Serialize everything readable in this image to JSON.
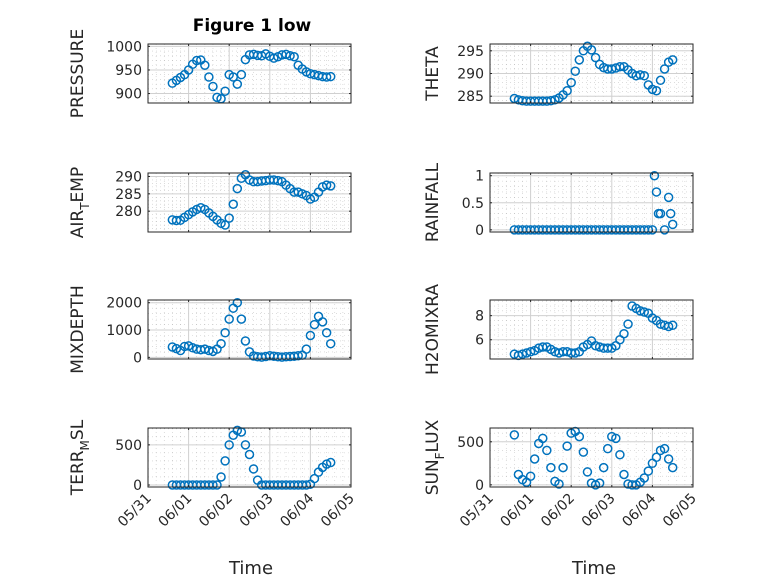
{
  "figure": {
    "title": "Figure 1 low"
  },
  "colors": {
    "marker": "#0072BD",
    "axis": "#262626"
  },
  "x_ticks": [
    "05/31",
    "06/01",
    "06/02",
    "06/03",
    "06/04",
    "06/05"
  ],
  "x_label": "Time",
  "chart_data": [
    {
      "type": "scatter",
      "id": "pressure",
      "ylabel": "PRESSURE",
      "ylim": [
        880,
        1005
      ],
      "yticks": [
        "900",
        "950",
        "1000"
      ],
      "ytick_values": [
        900,
        950,
        1000
      ],
      "x": [
        0.6,
        0.7,
        0.8,
        0.9,
        1.0,
        1.1,
        1.2,
        1.3,
        1.4,
        1.5,
        1.6,
        1.7,
        1.8,
        1.9,
        2.0,
        2.1,
        2.2,
        2.3,
        2.4,
        2.5,
        2.6,
        2.7,
        2.8,
        2.9,
        3.0,
        3.1,
        3.2,
        3.3,
        3.4,
        3.5,
        3.6,
        3.7,
        3.8,
        3.9,
        4.0,
        4.1,
        4.2,
        4.3,
        4.4,
        4.5
      ],
      "y": [
        922,
        928,
        934,
        940,
        950,
        962,
        970,
        971,
        960,
        935,
        915,
        892,
        889,
        905,
        940,
        935,
        920,
        940,
        972,
        982,
        983,
        981,
        980,
        984,
        979,
        975,
        978,
        982,
        983,
        980,
        978,
        960,
        952,
        946,
        942,
        940,
        938,
        936,
        935,
        936
      ]
    },
    {
      "type": "scatter",
      "id": "theta",
      "ylabel": "THETA",
      "ylim": [
        283.5,
        296.5
      ],
      "yticks": [
        "285",
        "290",
        "295"
      ],
      "ytick_values": [
        285,
        290,
        295
      ],
      "x": [
        0.6,
        0.7,
        0.8,
        0.9,
        1.0,
        1.1,
        1.2,
        1.3,
        1.4,
        1.5,
        1.6,
        1.7,
        1.8,
        1.9,
        2.0,
        2.1,
        2.2,
        2.3,
        2.4,
        2.5,
        2.6,
        2.7,
        2.8,
        2.9,
        3.0,
        3.1,
        3.2,
        3.3,
        3.4,
        3.5,
        3.6,
        3.7,
        3.8,
        3.9,
        4.0,
        4.1,
        4.2,
        4.3,
        4.4,
        4.5
      ],
      "y": [
        284.5,
        284.2,
        284.0,
        283.9,
        283.9,
        283.9,
        283.9,
        283.9,
        283.9,
        284.0,
        284.2,
        284.6,
        285.3,
        286.2,
        288.0,
        290.5,
        293.0,
        295.0,
        296.0,
        295.2,
        293.5,
        292.0,
        291.3,
        291.0,
        291.0,
        291.2,
        291.5,
        291.5,
        290.8,
        290.0,
        289.5,
        289.7,
        289.5,
        287.5,
        286.5,
        286.2,
        288.5,
        291.0,
        292.5,
        293.0
      ]
    },
    {
      "type": "scatter",
      "id": "air_temp",
      "ylabel": "AIR_TEMP",
      "ylim": [
        274,
        291
      ],
      "yticks": [
        "280",
        "285",
        "290"
      ],
      "ytick_values": [
        280,
        285,
        290
      ],
      "x": [
        0.6,
        0.7,
        0.8,
        0.9,
        1.0,
        1.1,
        1.2,
        1.3,
        1.4,
        1.5,
        1.6,
        1.7,
        1.8,
        1.9,
        2.0,
        2.1,
        2.2,
        2.3,
        2.4,
        2.5,
        2.6,
        2.7,
        2.8,
        2.9,
        3.0,
        3.1,
        3.2,
        3.3,
        3.4,
        3.5,
        3.6,
        3.7,
        3.8,
        3.9,
        4.0,
        4.1,
        4.2,
        4.3,
        4.4,
        4.5
      ],
      "y": [
        277.5,
        277.3,
        277.4,
        278.2,
        279.0,
        279.8,
        280.5,
        281.0,
        280.5,
        279.5,
        278.5,
        277.5,
        276.5,
        276.0,
        278.0,
        282.0,
        286.5,
        289.5,
        290.5,
        289.0,
        288.5,
        288.5,
        288.7,
        288.8,
        289.0,
        289.0,
        288.8,
        288.5,
        287.5,
        286.5,
        285.5,
        285.5,
        285.0,
        284.5,
        283.5,
        284.0,
        285.5,
        287.0,
        287.5,
        287.3
      ]
    },
    {
      "type": "scatter",
      "id": "rainfall",
      "ylabel": "RAINFALL",
      "ylim": [
        -0.04,
        1.05
      ],
      "yticks": [
        "0",
        "0.5",
        "1"
      ],
      "ytick_values": [
        0,
        0.5,
        1
      ],
      "x": [
        0.6,
        0.7,
        0.8,
        0.9,
        1.0,
        1.1,
        1.2,
        1.3,
        1.4,
        1.5,
        1.6,
        1.7,
        1.8,
        1.9,
        2.0,
        2.1,
        2.2,
        2.3,
        2.4,
        2.5,
        2.6,
        2.7,
        2.8,
        2.9,
        3.0,
        3.1,
        3.2,
        3.3,
        3.4,
        3.5,
        3.6,
        3.7,
        3.8,
        3.9,
        4.0,
        4.05,
        4.1,
        4.15,
        4.2,
        4.3,
        4.4,
        4.45,
        4.5
      ],
      "y": [
        0,
        0,
        0,
        0,
        0,
        0,
        0,
        0,
        0,
        0,
        0,
        0,
        0,
        0,
        0,
        0,
        0,
        0,
        0,
        0,
        0,
        0,
        0,
        0,
        0,
        0,
        0,
        0,
        0,
        0,
        0,
        0,
        0,
        0,
        0,
        1.0,
        0.7,
        0.3,
        0.3,
        0,
        0.6,
        0.3,
        0.1
      ]
    },
    {
      "type": "scatter",
      "id": "mixdepth",
      "ylabel": "MIXDEPTH",
      "ylim": [
        -60,
        2100
      ],
      "yticks": [
        "0",
        "1000",
        "2000"
      ],
      "ytick_values": [
        0,
        1000,
        2000
      ],
      "x": [
        0.6,
        0.7,
        0.8,
        0.9,
        1.0,
        1.1,
        1.2,
        1.3,
        1.4,
        1.5,
        1.6,
        1.7,
        1.8,
        1.9,
        2.0,
        2.1,
        2.2,
        2.3,
        2.4,
        2.5,
        2.6,
        2.7,
        2.8,
        2.9,
        3.0,
        3.1,
        3.2,
        3.3,
        3.4,
        3.5,
        3.6,
        3.7,
        3.8,
        3.9,
        4.0,
        4.1,
        4.2,
        4.3,
        4.4,
        4.5
      ],
      "y": [
        380,
        320,
        250,
        400,
        420,
        350,
        300,
        280,
        300,
        250,
        220,
        300,
        500,
        900,
        1400,
        1800,
        2000,
        1400,
        600,
        200,
        50,
        20,
        10,
        30,
        60,
        40,
        20,
        10,
        20,
        30,
        40,
        60,
        80,
        300,
        800,
        1200,
        1500,
        1300,
        900,
        500
      ]
    },
    {
      "type": "scatter",
      "id": "h2omixra",
      "ylabel": "H2OMIXRA",
      "ylim": [
        4.4,
        9.3
      ],
      "yticks": [
        "6",
        "8"
      ],
      "ytick_values": [
        6,
        8
      ],
      "x": [
        0.6,
        0.7,
        0.8,
        0.9,
        1.0,
        1.1,
        1.2,
        1.3,
        1.4,
        1.5,
        1.6,
        1.7,
        1.8,
        1.9,
        2.0,
        2.1,
        2.2,
        2.3,
        2.4,
        2.5,
        2.6,
        2.7,
        2.8,
        2.9,
        3.0,
        3.1,
        3.2,
        3.3,
        3.4,
        3.5,
        3.6,
        3.7,
        3.8,
        3.9,
        4.0,
        4.1,
        4.2,
        4.3,
        4.4,
        4.5
      ],
      "y": [
        4.8,
        4.7,
        4.8,
        4.9,
        5.0,
        5.1,
        5.3,
        5.4,
        5.4,
        5.2,
        5.0,
        4.9,
        5.0,
        5.0,
        4.9,
        4.9,
        5.0,
        5.4,
        5.6,
        5.9,
        5.5,
        5.4,
        5.3,
        5.3,
        5.3,
        5.5,
        6.0,
        6.5,
        7.3,
        8.8,
        8.6,
        8.4,
        8.3,
        8.2,
        7.8,
        7.6,
        7.3,
        7.2,
        7.1,
        7.2
      ]
    },
    {
      "type": "scatter",
      "id": "terr_msl",
      "ylabel": "TERR_MSL",
      "ylim": [
        -25,
        710
      ],
      "yticks": [
        "0",
        "500"
      ],
      "ytick_values": [
        0,
        500
      ],
      "x": [
        0.6,
        0.7,
        0.8,
        0.9,
        1.0,
        1.1,
        1.2,
        1.3,
        1.4,
        1.5,
        1.6,
        1.7,
        1.8,
        1.9,
        2.0,
        2.1,
        2.2,
        2.3,
        2.4,
        2.5,
        2.6,
        2.7,
        2.8,
        2.9,
        3.0,
        3.1,
        3.2,
        3.3,
        3.4,
        3.5,
        3.6,
        3.7,
        3.8,
        3.9,
        4.0,
        4.1,
        4.2,
        4.3,
        4.4,
        4.5
      ],
      "y": [
        0,
        0,
        0,
        0,
        0,
        0,
        0,
        0,
        0,
        0,
        0,
        0,
        100,
        300,
        500,
        620,
        680,
        660,
        500,
        380,
        200,
        60,
        0,
        0,
        0,
        0,
        0,
        0,
        0,
        0,
        0,
        0,
        0,
        0,
        10,
        80,
        160,
        220,
        260,
        280
      ]
    },
    {
      "type": "scatter",
      "id": "sun_flux",
      "ylabel": "SUN_FLUX",
      "ylim": [
        -25,
        660
      ],
      "yticks": [
        "0",
        "500"
      ],
      "ytick_values": [
        0,
        500
      ],
      "x": [
        0.6,
        0.7,
        0.8,
        0.9,
        1.0,
        1.1,
        1.2,
        1.3,
        1.4,
        1.5,
        1.6,
        1.7,
        1.8,
        1.9,
        2.0,
        2.1,
        2.2,
        2.3,
        2.4,
        2.5,
        2.6,
        2.7,
        2.8,
        2.9,
        3.0,
        3.1,
        3.2,
        3.3,
        3.4,
        3.5,
        3.6,
        3.7,
        3.8,
        3.9,
        4.0,
        4.1,
        4.2,
        4.3,
        4.4,
        4.5
      ],
      "y": [
        580,
        120,
        60,
        30,
        100,
        300,
        480,
        540,
        400,
        200,
        40,
        10,
        200,
        450,
        600,
        620,
        560,
        380,
        150,
        20,
        0,
        20,
        200,
        420,
        560,
        540,
        350,
        120,
        10,
        0,
        0,
        30,
        80,
        160,
        250,
        320,
        400,
        420,
        300,
        200
      ]
    }
  ]
}
